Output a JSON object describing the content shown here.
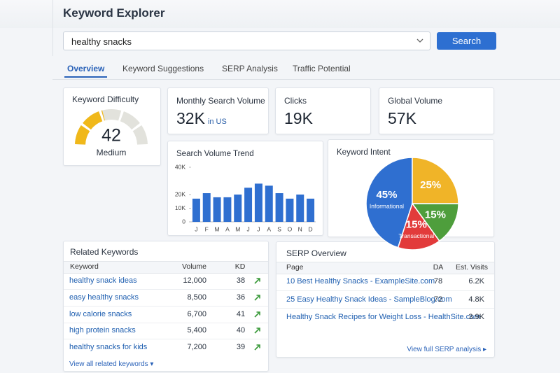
{
  "header": {
    "title": "Keyword Explorer"
  },
  "search": {
    "query": "healthy snacks",
    "button": "Search"
  },
  "tabs": {
    "items": [
      "Overview",
      "Keyword Suggestions",
      "SERP Analysis",
      "Traffic Potential"
    ],
    "active": 0
  },
  "metrics": [
    {
      "title": "Monthly Search Volume",
      "value": "32K",
      "note": "in US"
    },
    {
      "title": "Clicks",
      "value": "19K"
    },
    {
      "title": "Global Volume",
      "value": "57K"
    }
  ],
  "chart_data": [
    {
      "type": "gauge",
      "title": "Keyword Difficulty",
      "values": [
        42
      ],
      "label": "Medium",
      "ylim": [
        0,
        100
      ],
      "color": "#f0b81a",
      "track_color": "#e2e2dc"
    },
    {
      "type": "bar",
      "title": "Search Volume Trend",
      "categories": [
        "J",
        "F",
        "M",
        "A",
        "M",
        "J",
        "J",
        "A",
        "S",
        "O",
        "N",
        "D"
      ],
      "values": [
        17000,
        21000,
        18000,
        18000,
        20000,
        25000,
        28000,
        26500,
        21000,
        17000,
        20000,
        17000
      ],
      "color": "#2f6fd0",
      "ylim": [
        0,
        40000
      ],
      "yticks": [
        0,
        {
          "value": 10000,
          "label": "10K"
        },
        {
          "value": 20000,
          "label": "20K"
        },
        {
          "value": 40000,
          "label": "40K"
        }
      ]
    },
    {
      "type": "pie",
      "title": "Keyword Intent",
      "categories": [
        "Informational",
        null,
        null,
        "Transactional"
      ],
      "values": [
        45,
        25,
        15,
        15
      ],
      "value_labels": [
        "45%",
        "25%",
        "15%",
        "15%"
      ],
      "colors": [
        "#2f6fd0",
        "#f0b428",
        "#4e9e3c",
        "#e23b3b"
      ]
    }
  ],
  "related_keywords": {
    "title": "Related Keywords",
    "columns": [
      "Keyword",
      "Volume",
      "KD"
    ],
    "rows": [
      [
        "healthy snack ideas",
        "12,000",
        "38"
      ],
      [
        "easy healthy snacks",
        "8,500",
        "36"
      ],
      [
        "low calorie snacks",
        "6,700",
        "41"
      ],
      [
        "high protein snacks",
        "5,400",
        "40"
      ],
      [
        "healthy snacks for kids",
        "7,200",
        "39"
      ]
    ],
    "footer": "View all related keywords ▾"
  },
  "serp_overview": {
    "title": "SERP Overview",
    "columns": [
      "Page",
      "DA",
      "Est. Visits"
    ],
    "rows": [
      [
        "10 Best Healthy Snacks - ExampleSite.com",
        "78",
        "6.2K"
      ],
      [
        "25 Easy Healthy Snack Ideas - SampleBlog.com",
        "72",
        "4.8K"
      ],
      [
        "Healthy Snack Recipes for Weight Loss - HealthSite.com",
        null,
        "3.9K"
      ]
    ],
    "footer": "View full SERP analysis ▸"
  }
}
